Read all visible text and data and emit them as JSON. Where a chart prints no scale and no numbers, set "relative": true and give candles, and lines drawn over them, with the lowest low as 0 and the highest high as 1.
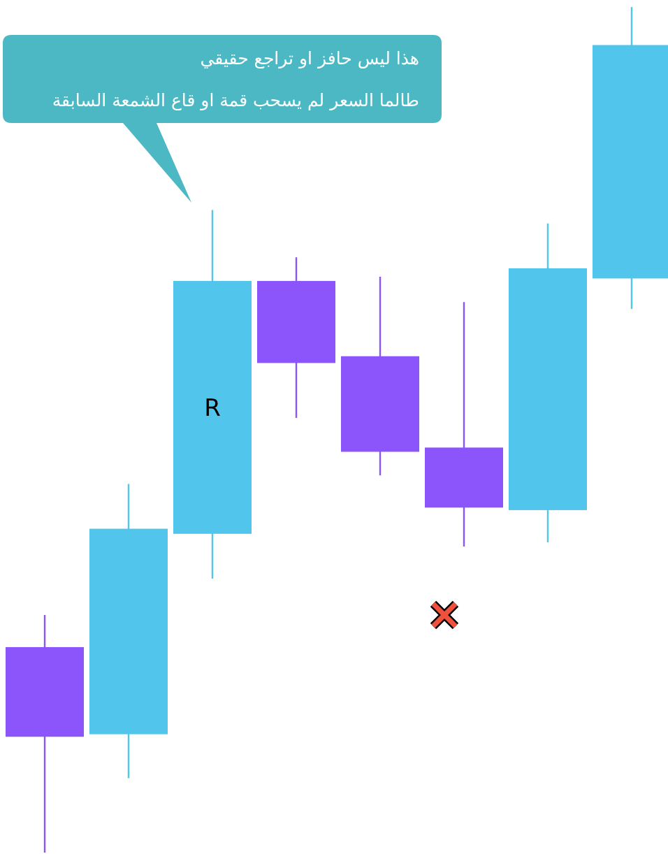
{
  "chart_data": {
    "type": "candlestick",
    "relative": true,
    "categories": [
      null,
      null,
      null,
      null,
      null,
      null,
      null,
      null
    ],
    "ohlc": [
      [
        0.243,
        0.281,
        0.0,
        0.137
      ],
      [
        0.14,
        0.436,
        0.088,
        0.383
      ],
      [
        0.377,
        0.76,
        0.324,
        0.676
      ],
      [
        0.676,
        0.704,
        0.514,
        0.579
      ],
      [
        0.587,
        0.681,
        0.446,
        0.474
      ],
      [
        0.479,
        0.651,
        0.362,
        0.408
      ],
      [
        0.405,
        0.744,
        0.367,
        0.691
      ],
      [
        0.679,
        1.0,
        0.643,
        0.955
      ]
    ],
    "colors": [
      "#8b55fb",
      "#52c5ec",
      "#52c5ec",
      "#8b55fb",
      "#8b55fb",
      "#8b55fb",
      "#52c5ec",
      "#52c5ec"
    ],
    "annotations": [
      "هذا ليس حافز او تراجع حقيقي",
      "طالما السعر لم يسحب قمة او قاع الشمعة السابقة",
      "R"
    ]
  }
}
